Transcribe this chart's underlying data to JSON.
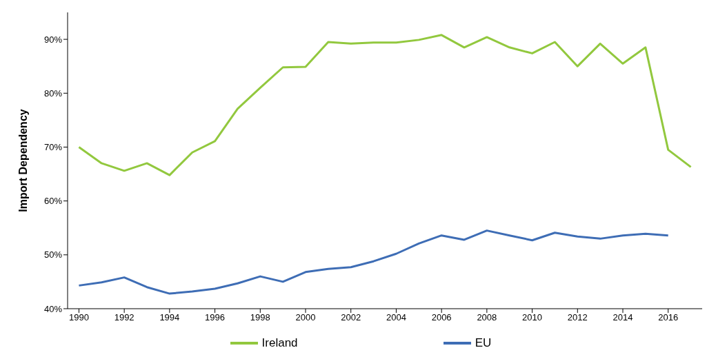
{
  "chart_data": {
    "type": "line",
    "ylabel": "Import Dependency",
    "x": [
      1990,
      1991,
      1992,
      1993,
      1994,
      1995,
      1996,
      1997,
      1998,
      1999,
      2000,
      2001,
      2002,
      2003,
      2004,
      2005,
      2006,
      2007,
      2008,
      2009,
      2010,
      2011,
      2012,
      2013,
      2014,
      2015,
      2016,
      2017
    ],
    "series": [
      {
        "name": "Ireland",
        "color": "#92c83e",
        "values": [
          70,
          67,
          65.6,
          67,
          64.8,
          69,
          71.1,
          77.1,
          81,
          84.8,
          84.9,
          89.5,
          89.2,
          89.4,
          89.4,
          89.9,
          90.8,
          88.5,
          90.4,
          88.5,
          87.4,
          89.5,
          85,
          89.2,
          85.5,
          88.5,
          69.5,
          66.3
        ]
      },
      {
        "name": "EU",
        "color": "#3e6db5",
        "values": [
          44.3,
          44.9,
          45.8,
          44,
          42.8,
          43.2,
          43.7,
          44.7,
          46,
          45,
          46.8,
          47.4,
          47.7,
          48.8,
          50.2,
          52.1,
          53.6,
          52.8,
          54.5,
          53.6,
          52.7,
          54.1,
          53.4,
          53,
          53.6,
          53.9,
          53.6,
          null
        ]
      }
    ],
    "xlim": [
      1989.5,
      2017.5
    ],
    "xticks": [
      1990,
      1992,
      1994,
      1996,
      1998,
      2000,
      2002,
      2004,
      2006,
      2008,
      2010,
      2012,
      2014,
      2016
    ],
    "ylim": [
      40,
      95
    ],
    "yticks": [
      {
        "value": 40,
        "label": "40%"
      },
      {
        "value": 50,
        "label": "50%"
      },
      {
        "value": 60,
        "label": "60%"
      },
      {
        "value": 70,
        "label": "70%"
      },
      {
        "value": 80,
        "label": "80%"
      },
      {
        "value": 90,
        "label": "90%"
      }
    ],
    "grid": false,
    "legend": "bottom",
    "marker": "none",
    "line_style": "solid"
  }
}
